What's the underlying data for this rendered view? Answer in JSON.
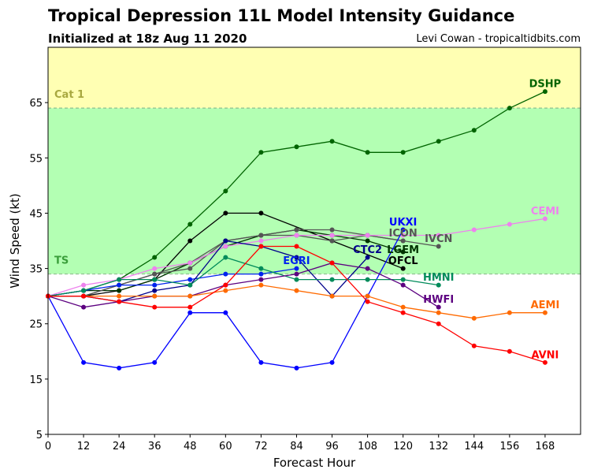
{
  "header": {
    "title": "Tropical Depression 11L Model Intensity Guidance",
    "subtitle": "Initialized at 18z Aug 11 2020",
    "credit": "Levi Cowan - tropicaltidbits.com"
  },
  "chart_data": {
    "type": "line",
    "title": "Tropical Depression 11L Model Intensity Guidance",
    "subtitle": "Initialized at 18z Aug 11 2020",
    "xlabel": "Forecast Hour",
    "ylabel": "Wind Speed (kt)",
    "xlim": [
      0,
      180
    ],
    "ylim": [
      5,
      75
    ],
    "xticks": [
      0,
      12,
      24,
      36,
      48,
      60,
      72,
      84,
      96,
      108,
      120,
      132,
      144,
      156,
      168
    ],
    "yticks": [
      5,
      15,
      25,
      35,
      45,
      55,
      65
    ],
    "grid": false,
    "bands": [
      {
        "name": "TS",
        "from": 34,
        "to": 64,
        "color": "#b3ffb3",
        "label_color": "#3a9e3a"
      },
      {
        "name": "Cat 1",
        "from": 64,
        "to": 75,
        "color": "#ffffb3",
        "label_color": "#a8a840"
      }
    ],
    "threshold_line_color": "#8fbf8f",
    "series": [
      {
        "name": "DSHP",
        "color": "#006400",
        "x": [
          0,
          12,
          24,
          36,
          48,
          60,
          72,
          84,
          96,
          108,
          120,
          132,
          144,
          156,
          168
        ],
        "values": [
          30,
          31,
          33,
          37,
          43,
          49,
          56,
          57,
          58,
          56,
          56,
          58,
          60,
          64,
          67
        ]
      },
      {
        "name": "OFCL",
        "color": "#000000",
        "x": [
          0,
          12,
          24,
          36,
          48,
          60,
          72,
          96,
          120
        ],
        "values": [
          30,
          30,
          31,
          33,
          40,
          45,
          45,
          40,
          35
        ]
      },
      {
        "name": "LGEM",
        "color": "#003300",
        "x": [
          0,
          12,
          24,
          36,
          48,
          60,
          72,
          84,
          96,
          108,
          120
        ],
        "values": [
          30,
          31,
          31,
          33,
          36,
          39,
          41,
          42,
          41,
          40,
          38
        ]
      },
      {
        "name": "ICON",
        "color": "#555555",
        "x": [
          0,
          12,
          24,
          36,
          48,
          60,
          72,
          84,
          96,
          108,
          120
        ],
        "values": [
          30,
          30,
          32,
          34,
          35,
          40,
          41,
          41,
          40,
          41,
          40
        ]
      },
      {
        "name": "IVCN",
        "color": "#555555",
        "x": [
          0,
          12,
          24,
          36,
          48,
          60,
          72,
          84,
          96,
          108,
          120,
          132
        ],
        "values": [
          30,
          30,
          32,
          34,
          36,
          40,
          41,
          42,
          42,
          41,
          40,
          39
        ]
      },
      {
        "name": "CEMI",
        "color": "#ee82ee",
        "x": [
          0,
          12,
          24,
          36,
          48,
          60,
          72,
          84,
          96,
          108,
          120,
          132,
          144,
          156,
          168
        ],
        "values": [
          30,
          32,
          33,
          35,
          36,
          39,
          40,
          41,
          41,
          41,
          41,
          41,
          42,
          43,
          44
        ]
      },
      {
        "name": "UKXI",
        "color": "#0000ff",
        "x": [
          0,
          12,
          24,
          36,
          48,
          60,
          72,
          84,
          96,
          108,
          120
        ],
        "values": [
          30,
          18,
          17,
          18,
          27,
          27,
          18,
          17,
          18,
          30,
          42
        ]
      },
      {
        "name": "EGRI",
        "color": "#0022ee",
        "x": [
          0,
          12,
          24,
          36,
          48,
          60,
          72,
          84
        ],
        "values": [
          30,
          31,
          32,
          32,
          33,
          34,
          34,
          35
        ]
      },
      {
        "name": "CTC2",
        "color": "#00008b",
        "x": [
          0,
          12,
          24,
          36,
          48,
          60,
          72,
          84,
          96,
          108
        ],
        "values": [
          30,
          30,
          29,
          31,
          32,
          40,
          39,
          37,
          30,
          37
        ]
      },
      {
        "name": "HMNI",
        "color": "#008b5a",
        "x": [
          0,
          12,
          24,
          36,
          48,
          60,
          72,
          84,
          96,
          108,
          120,
          132
        ],
        "values": [
          30,
          31,
          33,
          33,
          32,
          37,
          35,
          33,
          33,
          33,
          33,
          32
        ]
      },
      {
        "name": "HWFI",
        "color": "#5c0080",
        "x": [
          0,
          12,
          24,
          36,
          48,
          60,
          72,
          84,
          96,
          108,
          120,
          132
        ],
        "values": [
          30,
          28,
          29,
          30,
          30,
          32,
          33,
          34,
          36,
          35,
          32,
          28
        ]
      },
      {
        "name": "AEMI",
        "color": "#ff6a00",
        "x": [
          0,
          12,
          24,
          36,
          48,
          60,
          72,
          84,
          96,
          108,
          120,
          132,
          144,
          156,
          168
        ],
        "values": [
          30,
          30,
          30,
          30,
          30,
          31,
          32,
          31,
          30,
          30,
          28,
          27,
          26,
          27,
          27
        ]
      },
      {
        "name": "AVNI",
        "color": "#ff0000",
        "x": [
          0,
          12,
          24,
          36,
          48,
          60,
          72,
          84,
          96,
          108,
          120,
          132,
          144,
          156,
          168
        ],
        "values": [
          30,
          30,
          29,
          28,
          28,
          32,
          39,
          39,
          36,
          29,
          27,
          25,
          21,
          20,
          18
        ]
      }
    ],
    "series_labels": [
      {
        "name": "DSHP",
        "x": 168,
        "y": 68.5,
        "color": "#006400"
      },
      {
        "name": "CEMI",
        "x": 168,
        "y": 45.5,
        "color": "#ee82ee"
      },
      {
        "name": "AEMI",
        "x": 168,
        "y": 28.5,
        "color": "#ff6a00"
      },
      {
        "name": "AVNI",
        "x": 168,
        "y": 19.5,
        "color": "#ff0000"
      },
      {
        "name": "UKXI",
        "x": 120,
        "y": 43.5,
        "color": "#0000ff"
      },
      {
        "name": "ICON",
        "x": 120,
        "y": 41.5,
        "color": "#555555"
      },
      {
        "name": "IVCN",
        "x": 132,
        "y": 40.5,
        "color": "#555555"
      },
      {
        "name": "CTC2",
        "x": 108,
        "y": 38.5,
        "color": "#00008b"
      },
      {
        "name": "LGEM",
        "x": 120,
        "y": 38.5,
        "color": "#003300"
      },
      {
        "name": "OFCL",
        "x": 120,
        "y": 36.5,
        "color": "#000000"
      },
      {
        "name": "EGRI",
        "x": 84,
        "y": 36.5,
        "color": "#0022ee"
      },
      {
        "name": "HMNI",
        "x": 132,
        "y": 33.5,
        "color": "#008b5a"
      },
      {
        "name": "HWFI",
        "x": 132,
        "y": 29.5,
        "color": "#5c0080"
      }
    ]
  }
}
